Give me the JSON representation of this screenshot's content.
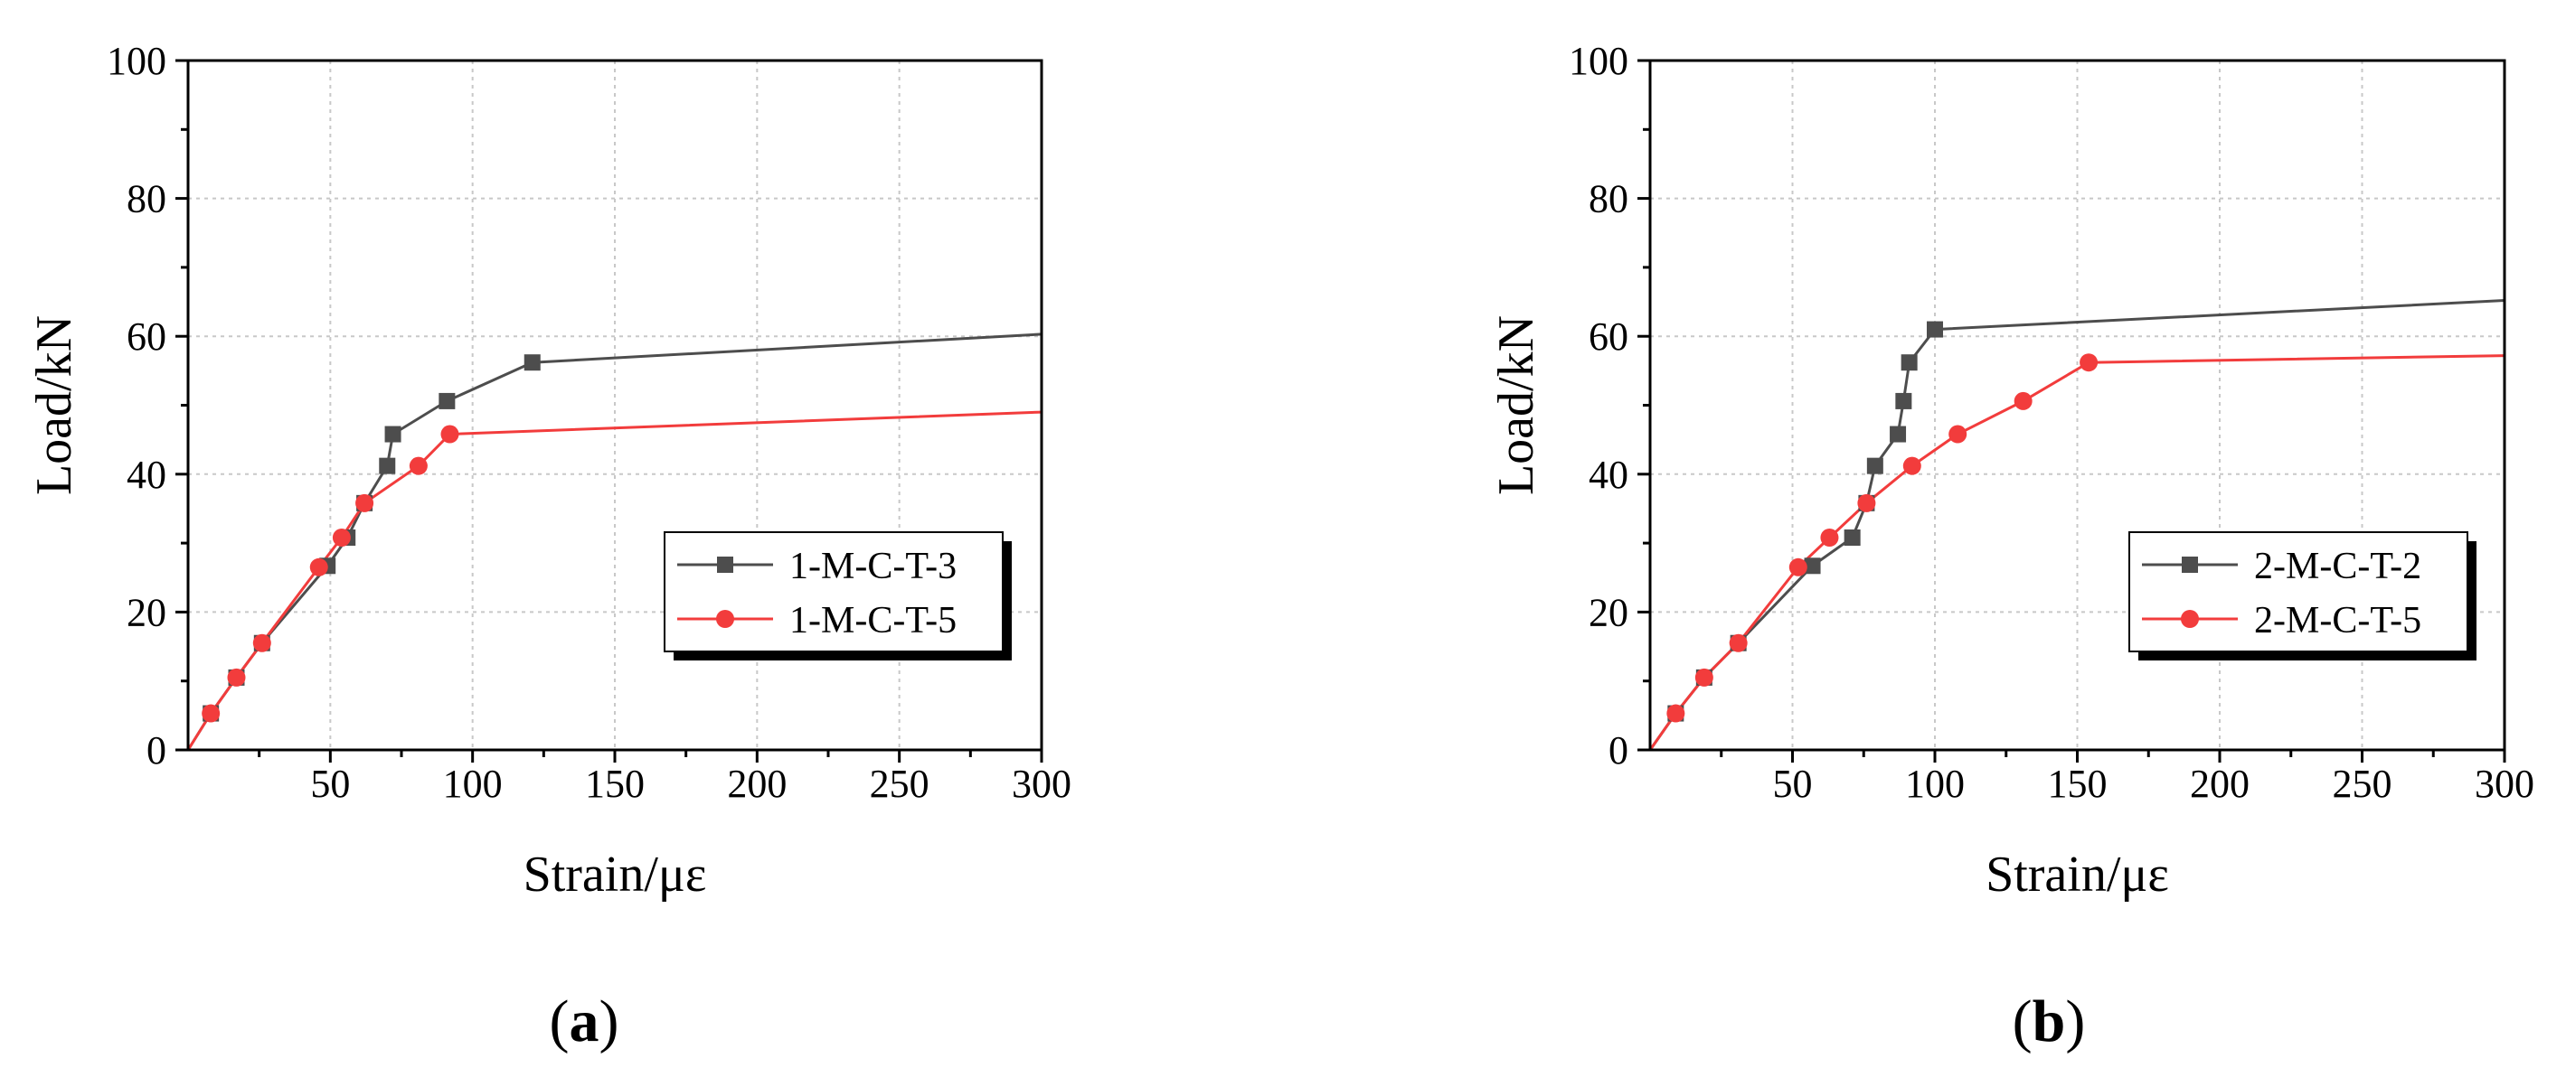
{
  "figure": {
    "panels": [
      {
        "label_open": "(",
        "label_letter": "a",
        "label_close": ")"
      },
      {
        "label_open": "(",
        "label_letter": "b",
        "label_close": ")"
      }
    ]
  },
  "colors": {
    "series_dark": "#4d4d4d",
    "series_red": "#f23c3c",
    "grid": "#c8c8c8"
  },
  "chart_data": [
    {
      "type": "line",
      "title": "",
      "xlabel": "Strain/με",
      "ylabel": "Load/kN",
      "xlim": [
        0,
        300
      ],
      "ylim": [
        0,
        100
      ],
      "xticks": [
        50,
        100,
        150,
        200,
        250,
        300
      ],
      "yticks": [
        0,
        20,
        40,
        60,
        80,
        100
      ],
      "grid": true,
      "legend_position": "right",
      "series": [
        {
          "name": "1-M-C-T-3",
          "color": "#4d4d4d",
          "marker": "square",
          "x": [
            0,
            8,
            17,
            26,
            49,
            56,
            62,
            70,
            72,
            91,
            121,
            300
          ],
          "y": [
            0,
            5.3,
            10.5,
            15.5,
            26.7,
            30.8,
            35.8,
            41.2,
            45.8,
            50.6,
            56.2,
            60.3
          ],
          "markers_at": [
            1,
            2,
            3,
            4,
            5,
            6,
            7,
            8,
            9,
            10
          ]
        },
        {
          "name": "1-M-C-T-5",
          "color": "#f23c3c",
          "marker": "circle",
          "x": [
            0,
            8,
            17,
            26,
            46,
            54,
            62,
            81,
            92,
            300
          ],
          "y": [
            0,
            5.3,
            10.5,
            15.5,
            26.5,
            30.8,
            35.8,
            41.2,
            45.8,
            49
          ],
          "markers_at": [
            1,
            2,
            3,
            4,
            5,
            6,
            7,
            8
          ]
        }
      ]
    },
    {
      "type": "line",
      "title": "",
      "xlabel": "Strain/με",
      "ylabel": "Load/kN",
      "xlim": [
        0,
        300
      ],
      "ylim": [
        0,
        100
      ],
      "xticks": [
        50,
        100,
        150,
        200,
        250,
        300
      ],
      "yticks": [
        0,
        20,
        40,
        60,
        80,
        100
      ],
      "grid": true,
      "legend_position": "right",
      "series": [
        {
          "name": "2-M-C-T-2",
          "color": "#4d4d4d",
          "marker": "square",
          "x": [
            0,
            9,
            19,
            31,
            57,
            71,
            76,
            79,
            87,
            89,
            91,
            100,
            300
          ],
          "y": [
            0,
            5.3,
            10.5,
            15.5,
            26.7,
            30.8,
            35.8,
            41.2,
            45.8,
            50.6,
            56.2,
            61,
            65.2
          ],
          "markers_at": [
            1,
            2,
            3,
            4,
            5,
            6,
            7,
            8,
            9,
            10,
            11
          ]
        },
        {
          "name": "2-M-C-T-5",
          "color": "#f23c3c",
          "marker": "circle",
          "x": [
            0,
            9,
            19,
            31,
            52,
            63,
            76,
            92,
            108,
            131,
            154,
            300
          ],
          "y": [
            0,
            5.3,
            10.5,
            15.5,
            26.5,
            30.8,
            35.8,
            41.2,
            45.8,
            50.6,
            56.2,
            57.2
          ],
          "markers_at": [
            1,
            2,
            3,
            4,
            5,
            6,
            7,
            8,
            9,
            10
          ]
        }
      ]
    }
  ]
}
